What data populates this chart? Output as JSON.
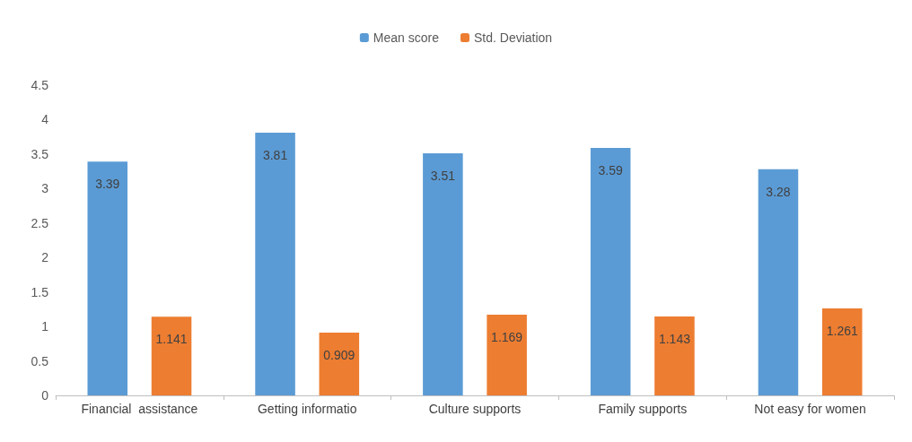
{
  "chart_data": {
    "type": "bar",
    "categories": [
      "Financial  assistance",
      "Getting informatio",
      "Culture supports",
      "Family supports",
      "Not easy for women"
    ],
    "series": [
      {
        "name": "Mean score",
        "color": "#5b9bd5",
        "values": [
          3.39,
          3.81,
          3.51,
          3.59,
          3.28
        ]
      },
      {
        "name": "Std. Deviation",
        "color": "#ed7d31",
        "values": [
          1.141,
          0.909,
          1.169,
          1.143,
          1.261
        ]
      }
    ],
    "ylim": [
      0,
      4.5
    ],
    "yticks": [
      0,
      0.5,
      1,
      1.5,
      2,
      2.5,
      3,
      3.5,
      4,
      4.5
    ],
    "grid": false,
    "legend": "top",
    "data_labels": true
  }
}
